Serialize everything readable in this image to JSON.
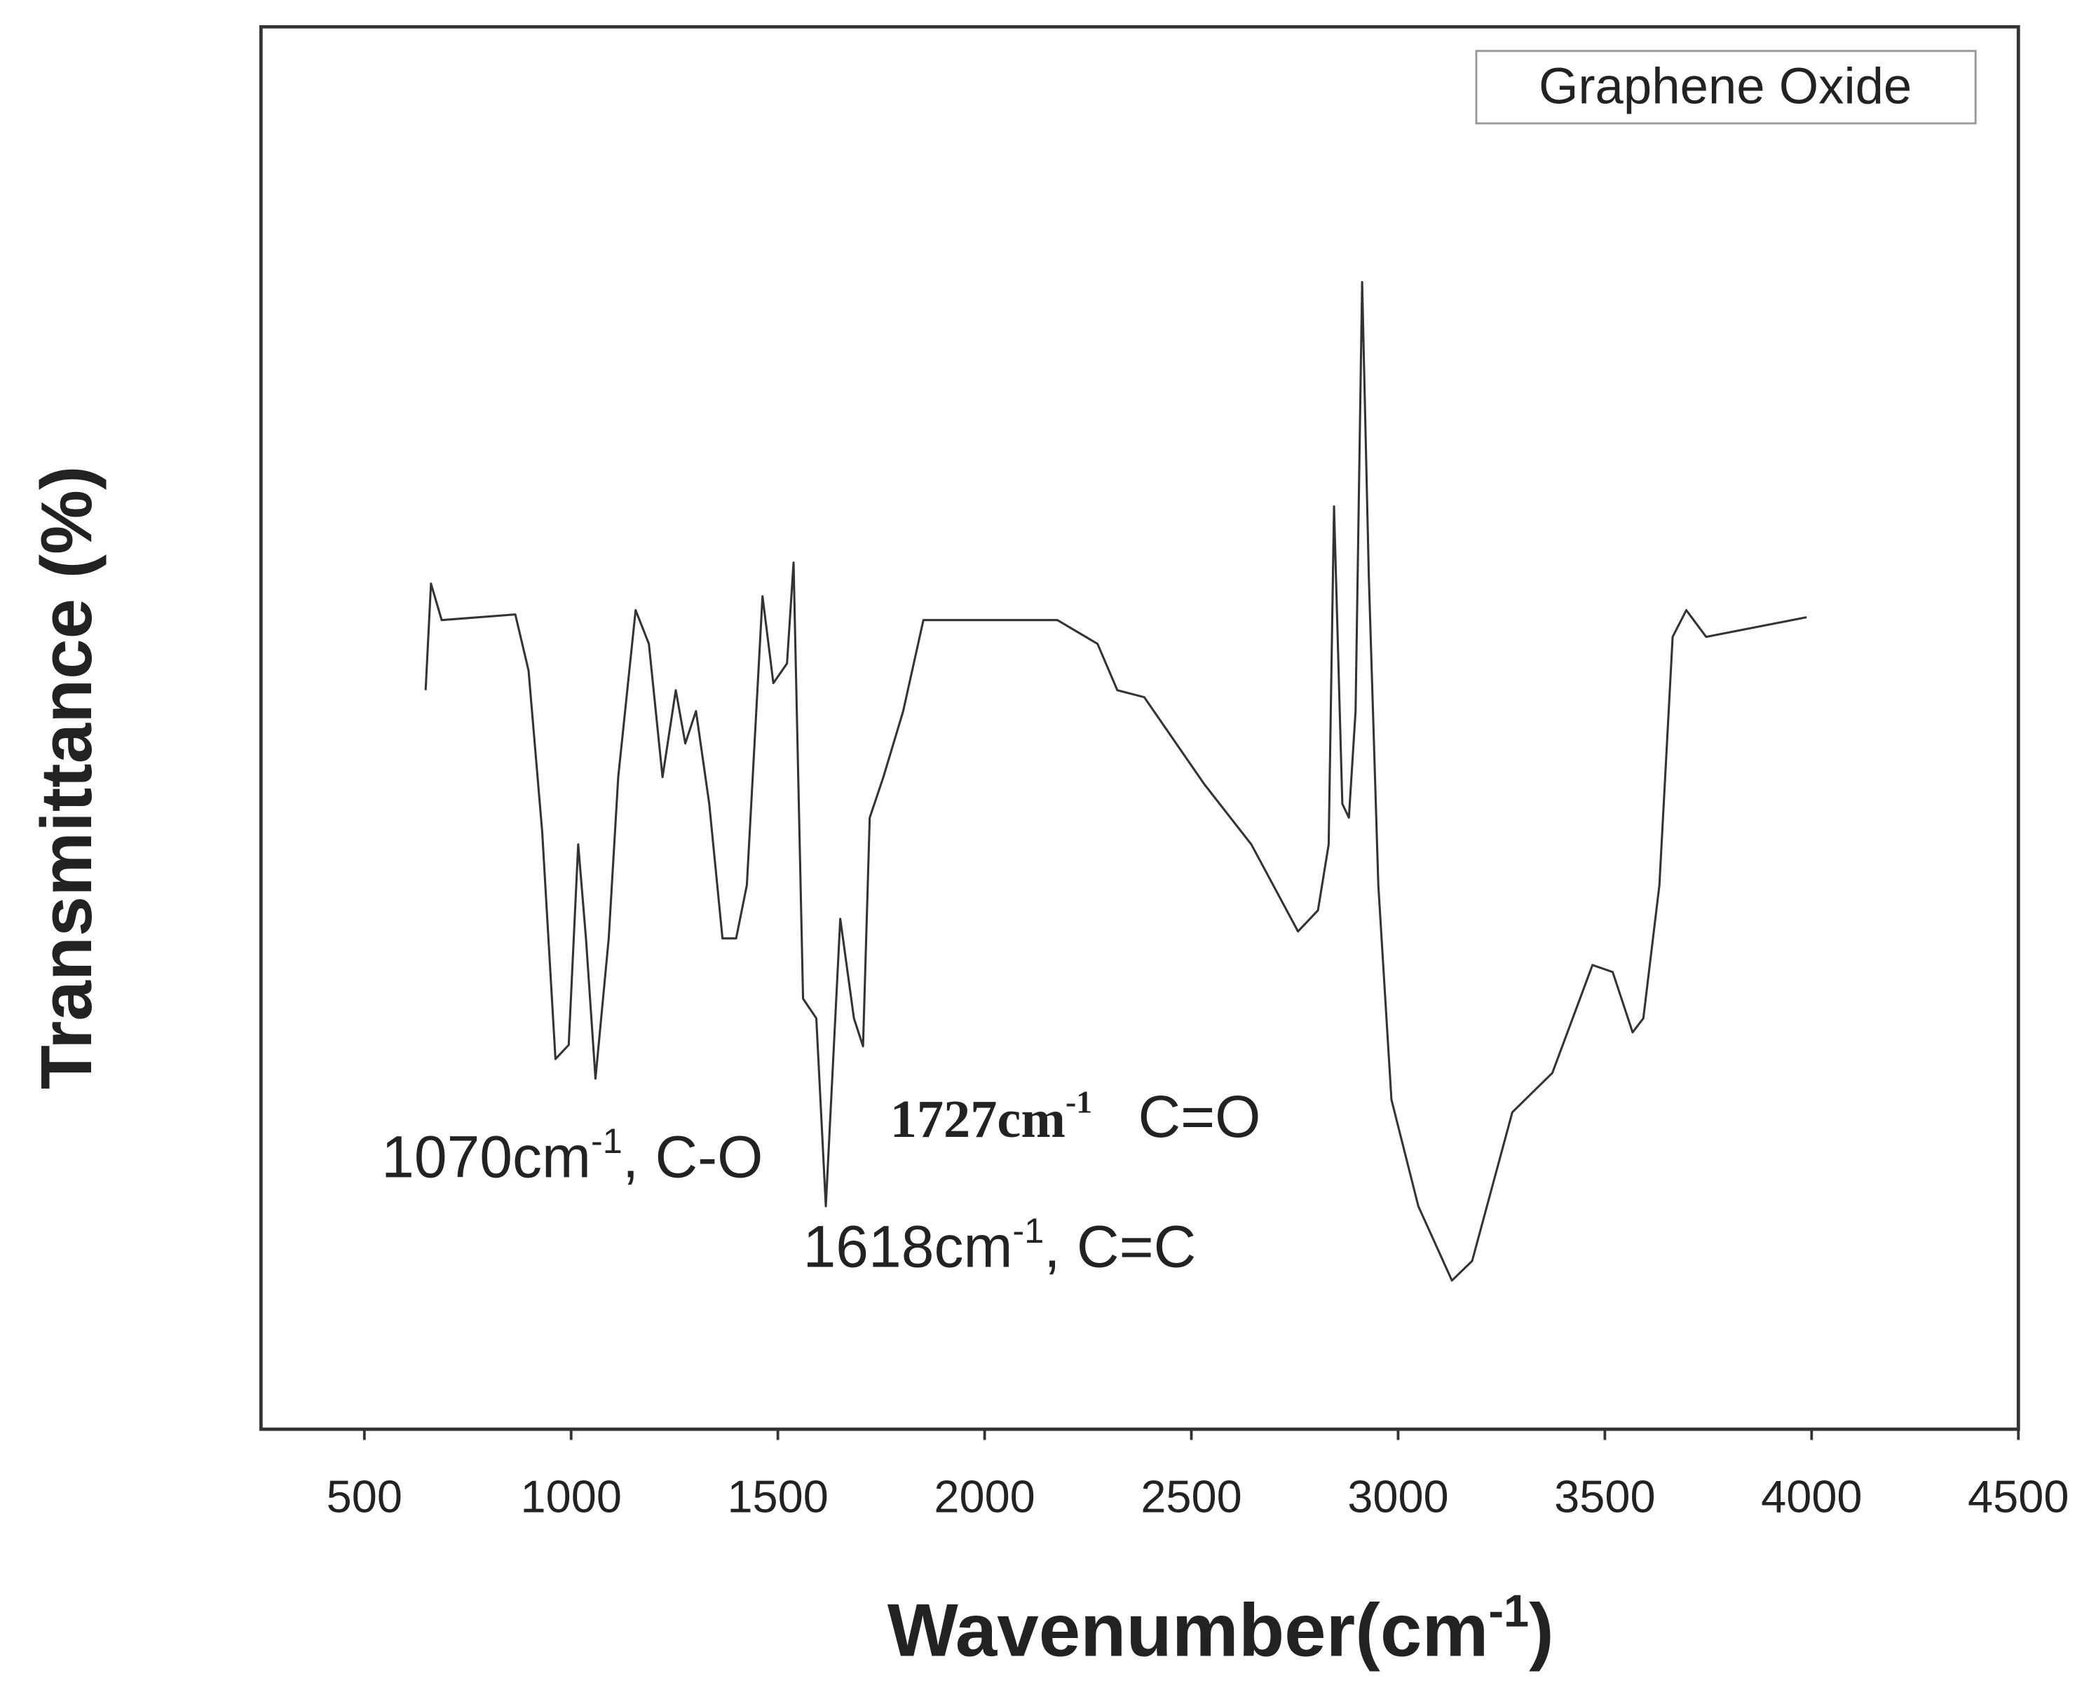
{
  "chart_data": {
    "type": "line",
    "y_label": "Transmittance (%)",
    "x_label": "Wavenumber(cm",
    "x_label_sup": "-1",
    "x_label_end": ")",
    "legend": "Graphene Oxide",
    "color": "#333333",
    "xlim": [
      250,
      4500
    ],
    "xticks": [
      500,
      1000,
      1500,
      2000,
      2500,
      3000,
      3500,
      4000,
      4500
    ],
    "ylim": [
      0,
      100
    ],
    "x": [
      648,
      661,
      687,
      865,
      897,
      930,
      962,
      994,
      1017,
      1036,
      1059,
      1091,
      1114,
      1156,
      1188,
      1221,
      1253,
      1276,
      1302,
      1334,
      1366,
      1399,
      1425,
      1463,
      1489,
      1522,
      1538,
      1561,
      1593,
      1616,
      1651,
      1684,
      1706,
      1722,
      1755,
      1803,
      1852,
      2176,
      2273,
      2321,
      2386,
      2531,
      2645,
      2758,
      2806,
      2832,
      2845,
      2865,
      2881,
      2897,
      2913,
      2929,
      2952,
      2984,
      3049,
      3130,
      3179,
      3276,
      3373,
      3470,
      3519,
      3567,
      3593,
      3632,
      3664,
      3697,
      3745,
      3988
    ],
    "values": [
      52.7,
      60.3,
      57.7,
      58.1,
      54.1,
      42.6,
      26.4,
      27.4,
      41.7,
      35.0,
      25.0,
      35.0,
      46.5,
      58.4,
      56.0,
      46.5,
      52.7,
      48.9,
      51.2,
      44.6,
      35.0,
      35.0,
      38.8,
      59.4,
      53.2,
      54.6,
      61.8,
      30.7,
      29.3,
      15.9,
      36.4,
      29.3,
      27.3,
      43.6,
      46.5,
      51.2,
      57.7,
      57.7,
      56.0,
      52.7,
      52.2,
      46.0,
      41.7,
      35.5,
      37.0,
      41.7,
      65.8,
      44.6,
      43.6,
      51.2,
      81.8,
      60.8,
      38.8,
      23.5,
      15.9,
      10.6,
      12.0,
      22.6,
      25.4,
      33.1,
      32.6,
      28.3,
      29.3,
      38.8,
      56.5,
      58.4,
      56.5,
      57.9
    ],
    "annotations": [
      {
        "text": "1070cm",
        "sup": "-1",
        "rest": ", C-O"
      },
      {
        "text": "1618cm",
        "sup": "-1",
        "rest": ", C=C"
      },
      {
        "text": "1727cm",
        "sup": "-1",
        "rest": " C=O"
      }
    ]
  }
}
